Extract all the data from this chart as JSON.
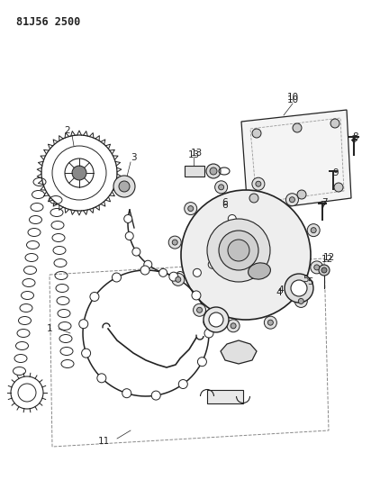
{
  "title": "81J56 2500",
  "bg_color": "#ffffff",
  "line_color": "#222222",
  "title_fontsize": 8.5,
  "label_fontsize": 7.5,
  "fig_width": 4.12,
  "fig_height": 5.33,
  "dpi": 100
}
